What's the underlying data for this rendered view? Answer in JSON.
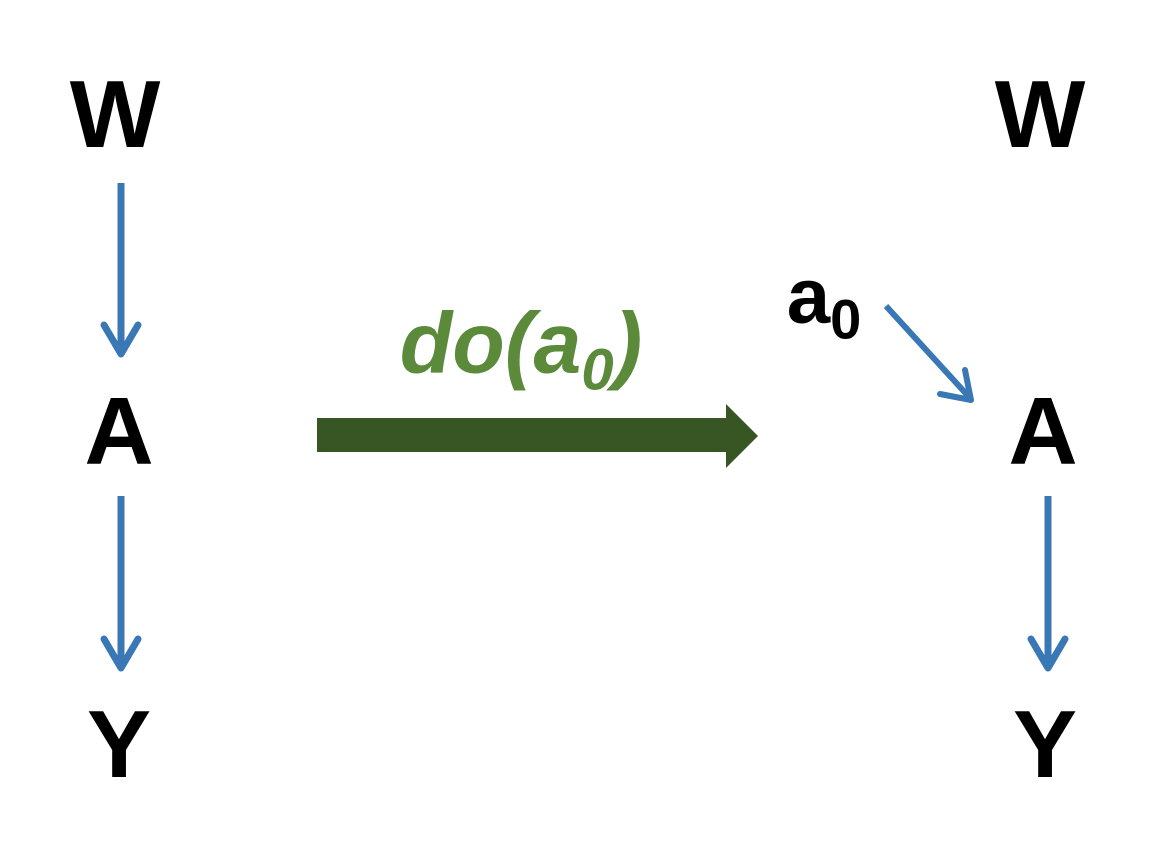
{
  "colors": {
    "edge": "#3a78b5",
    "intervention_arrow": "#375623",
    "intervention_label": "#5b8a3a",
    "node_text": "#000000",
    "background": "#ffffff"
  },
  "left_graph": {
    "node_w": "W",
    "node_a": "A",
    "node_y": "Y"
  },
  "intervention": {
    "label_prefix": "do(",
    "label_var": "a",
    "label_sub": "0",
    "label_suffix": ")"
  },
  "right_graph": {
    "node_w": "W",
    "node_a0_var": "a",
    "node_a0_sub": "0",
    "node_a": "A",
    "node_y": "Y"
  }
}
